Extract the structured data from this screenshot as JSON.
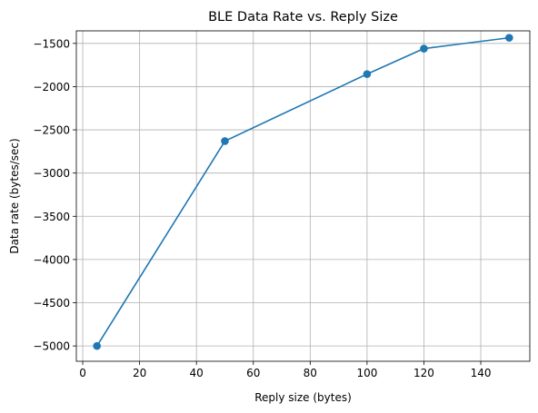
{
  "chart_data": {
    "type": "line",
    "title": "BLE Data Rate vs. Reply Size",
    "xlabel": "Reply size (bytes)",
    "ylabel": "Data rate (bytes/sec)",
    "xlim": [
      -2.25,
      157.25
    ],
    "ylim": [
      -5177,
      -1355
    ],
    "xticks": [
      0,
      20,
      40,
      60,
      80,
      100,
      120,
      140
    ],
    "xtick_labels": [
      "0",
      "20",
      "40",
      "60",
      "80",
      "100",
      "120",
      "140"
    ],
    "yticks": [
      -5000,
      -4500,
      -4000,
      -3500,
      -3000,
      -2500,
      -2000,
      -1500
    ],
    "ytick_labels": [
      "−5000",
      "−4500",
      "−4000",
      "−3500",
      "−3000",
      "−2500",
      "−2000",
      "−1500"
    ],
    "grid": true,
    "series": [
      {
        "color": "#1f77b4",
        "marker": "circle",
        "x": [
          5,
          50,
          100,
          120,
          150
        ],
        "y": [
          -5000,
          -2630,
          -1855,
          -1560,
          -1435
        ]
      }
    ]
  }
}
